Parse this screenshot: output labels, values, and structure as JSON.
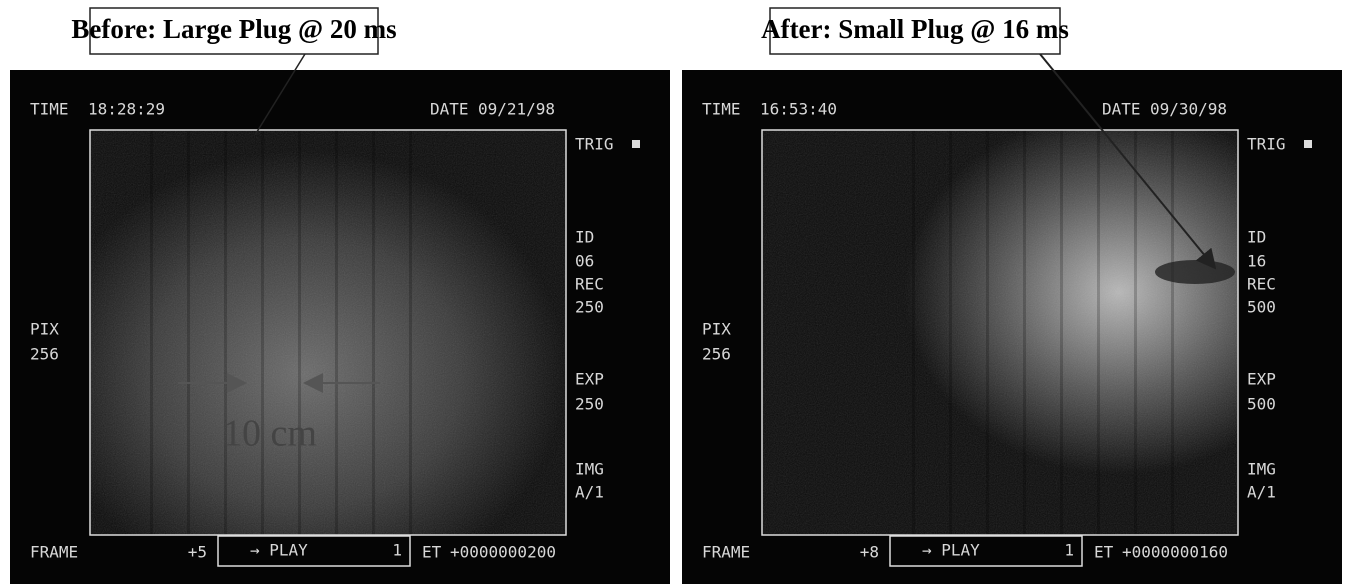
{
  "panels": [
    {
      "caption": "Before: Large Plug @ 20 ms",
      "time_label": "TIME",
      "time": "18:28:29",
      "date_label": "DATE",
      "date": "09/21/98",
      "trig": "TRIG",
      "id_label": "ID",
      "id": "06",
      "rec_label": "REC",
      "rec": "250",
      "pix_label": "PIX",
      "pix": "256",
      "exp_label": "EXP",
      "exp": "250",
      "img_label": "IMG",
      "img": "A/1",
      "frame_label": "FRAME",
      "frame_step": "+5",
      "play": "→ PLAY",
      "play_count": "1",
      "et_label": "ET",
      "et": "+0000000200",
      "scale_label": "10 cm"
    },
    {
      "caption": "After: Small Plug @ 16 ms",
      "time_label": "TIME",
      "time": "16:53:40",
      "date_label": "DATE",
      "date": "09/30/98",
      "trig": "TRIG",
      "id_label": "ID",
      "id": "16",
      "rec_label": "REC",
      "rec": "500",
      "pix_label": "PIX",
      "pix": "256",
      "exp_label": "EXP",
      "exp": "500",
      "img_label": "IMG",
      "img": "A/1",
      "frame_label": "FRAME",
      "frame_step": "+8",
      "play": "→ PLAY",
      "play_count": "1",
      "et_label": "ET",
      "et": "+0000000160"
    }
  ]
}
